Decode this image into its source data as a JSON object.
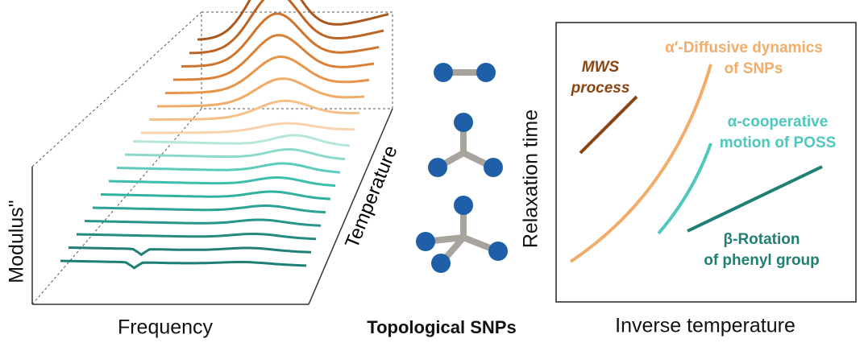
{
  "left_panel": {
    "y_axis_label": "Modulus\"",
    "x_axis_label": "Frequency",
    "depth_axis_label": "Temperature"
  },
  "middle_panel": {
    "caption": "Topological SNPs"
  },
  "right_panel": {
    "y_axis_label": "Relaxation time",
    "x_axis_label": "Inverse temperature",
    "processes": [
      {
        "lines": [
          "MWS",
          "process"
        ]
      },
      {
        "lines": [
          "α′-Diffusive dynamics",
          "of SNPs"
        ]
      },
      {
        "lines": [
          "α-cooperative",
          "motion of POSS"
        ]
      },
      {
        "lines": [
          "β-Rotation",
          "of phenyl group"
        ]
      }
    ]
  }
}
